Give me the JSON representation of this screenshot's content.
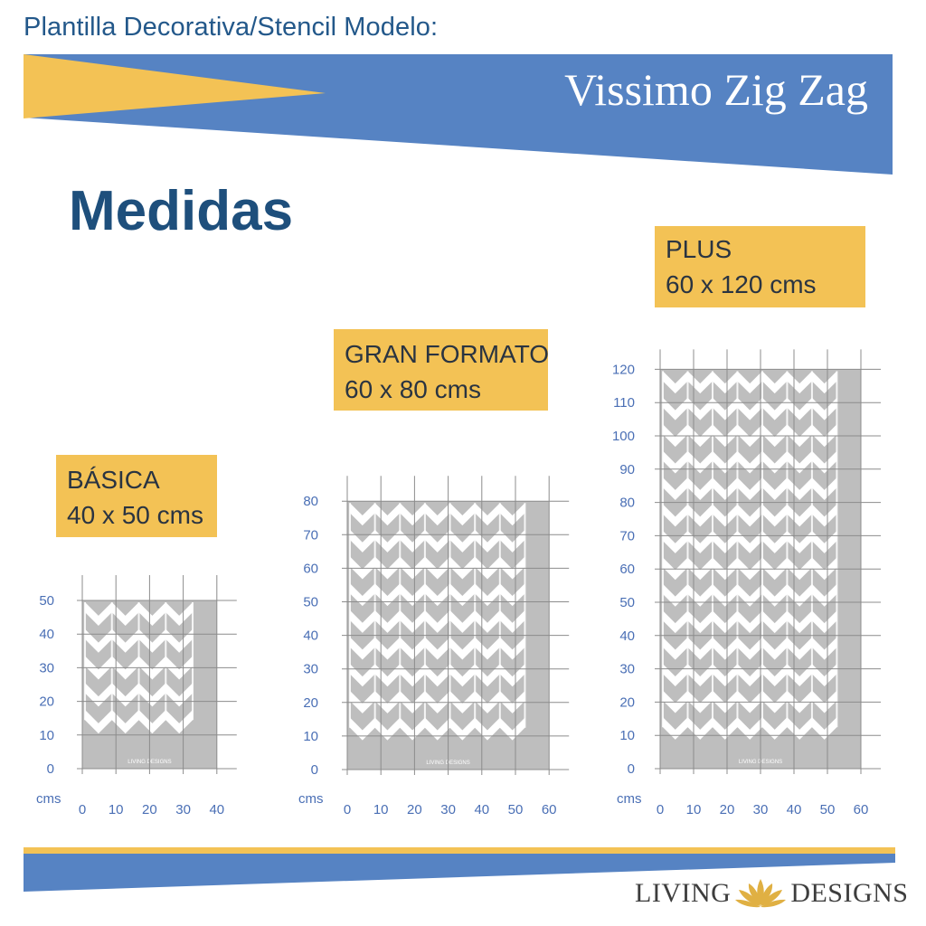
{
  "header": {
    "template_label": "Plantilla Decorativa/Stencil Modelo:",
    "product_name": "Vissimo Zig Zag"
  },
  "heading": "Medidas",
  "sizes": [
    {
      "name": "BÁSICA",
      "dimensions": "40 x 50 cms"
    },
    {
      "name": "GRAN FORMATO",
      "dimensions": "60 x 80 cms"
    },
    {
      "name": "PLUS",
      "dimensions": "60 x 120 cms"
    }
  ],
  "chart_data": [
    {
      "type": "grid",
      "xlabel": "cms",
      "x_ticks": [
        0,
        10,
        20,
        30,
        40
      ],
      "y_ticks": [
        0,
        10,
        20,
        30,
        40,
        50
      ],
      "xlim": [
        0,
        40
      ],
      "ylim": [
        0,
        50
      ],
      "stencil_size": [
        40,
        50
      ]
    },
    {
      "type": "grid",
      "xlabel": "cms",
      "x_ticks": [
        0,
        10,
        20,
        30,
        40,
        50,
        60
      ],
      "y_ticks": [
        0,
        10,
        20,
        30,
        40,
        50,
        60,
        70,
        80
      ],
      "xlim": [
        0,
        60
      ],
      "ylim": [
        0,
        80
      ],
      "stencil_size": [
        60,
        80
      ]
    },
    {
      "type": "grid",
      "xlabel": "cms",
      "x_ticks": [
        0,
        10,
        20,
        30,
        40,
        50,
        60
      ],
      "y_ticks": [
        0,
        10,
        20,
        30,
        40,
        50,
        60,
        70,
        80,
        90,
        100,
        110,
        120
      ],
      "xlim": [
        0,
        60
      ],
      "ylim": [
        0,
        120
      ],
      "stencil_size": [
        60,
        120
      ]
    }
  ],
  "stencil_watermark": "LIVING DESIGNS",
  "logo": {
    "left_text": "LIVING",
    "right_text": "DESIGNS",
    "icon": "lotus-icon"
  },
  "colors": {
    "blue": "#5683c3",
    "yellow": "#f3c255",
    "navy": "#1e4f7c",
    "stencil_gray": "#bebebe",
    "axis_text": "#4a6fb5",
    "grid": "#8c8c8c"
  }
}
